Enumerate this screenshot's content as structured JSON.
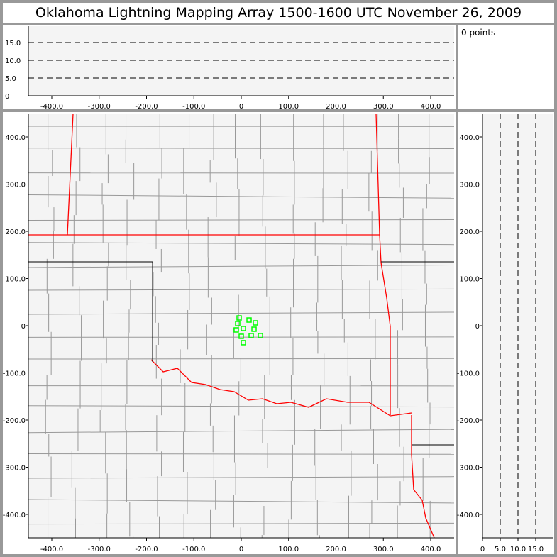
{
  "title": "Oklahoma Lightning Mapping Array   1500-1600 UTC  November 26, 2009",
  "points_label": "0 points",
  "colors": {
    "state_border": "#ff0000",
    "county_border": "#999999",
    "source_marker": "#00ff00",
    "plot_bg": "#f4f4f4"
  },
  "chart_data": [
    {
      "type": "scatter",
      "panel": "altitude-vs-x",
      "xlim": [
        -460,
        445
      ],
      "ylim": [
        0,
        20
      ],
      "xticks": [
        "-400.0",
        "-300.0",
        "-200.0",
        "-100.0",
        "0",
        "100.0",
        "200.0",
        "300.0",
        "400.0"
      ],
      "yticks": [
        "0",
        "5.0",
        "10.0",
        "15.0"
      ],
      "grid": "dashed",
      "points": []
    },
    {
      "type": "scatter",
      "panel": "plan-view-map",
      "xlim": [
        -450,
        450
      ],
      "ylim": [
        -450,
        450
      ],
      "xticks": [
        "-400.0",
        "-300.0",
        "-200.0",
        "-100.0",
        "0",
        "100.0",
        "200.0",
        "300.0",
        "400.0"
      ],
      "yticks": [
        "400.0",
        "300.0",
        "200.0",
        "100.0",
        "0",
        "-100.0",
        "-200.0",
        "-300.0",
        "-400.0"
      ],
      "points": [
        [
          -4.5,
          16.5
        ],
        [
          16.5,
          12
        ],
        [
          30,
          6
        ],
        [
          -7.5,
          4.5
        ],
        [
          4.5,
          -6
        ],
        [
          -10.5,
          -9
        ],
        [
          27,
          -7.5
        ],
        [
          0,
          -22.5
        ],
        [
          21,
          -21
        ],
        [
          40.5,
          -21
        ],
        [
          4.5,
          -36
        ]
      ]
    },
    {
      "type": "scatter",
      "panel": "y-vs-altitude",
      "xlim": [
        0,
        20
      ],
      "xticks": [
        "0",
        "5.0",
        "10.0",
        "15.0"
      ],
      "grid": "dashed",
      "points": []
    }
  ]
}
